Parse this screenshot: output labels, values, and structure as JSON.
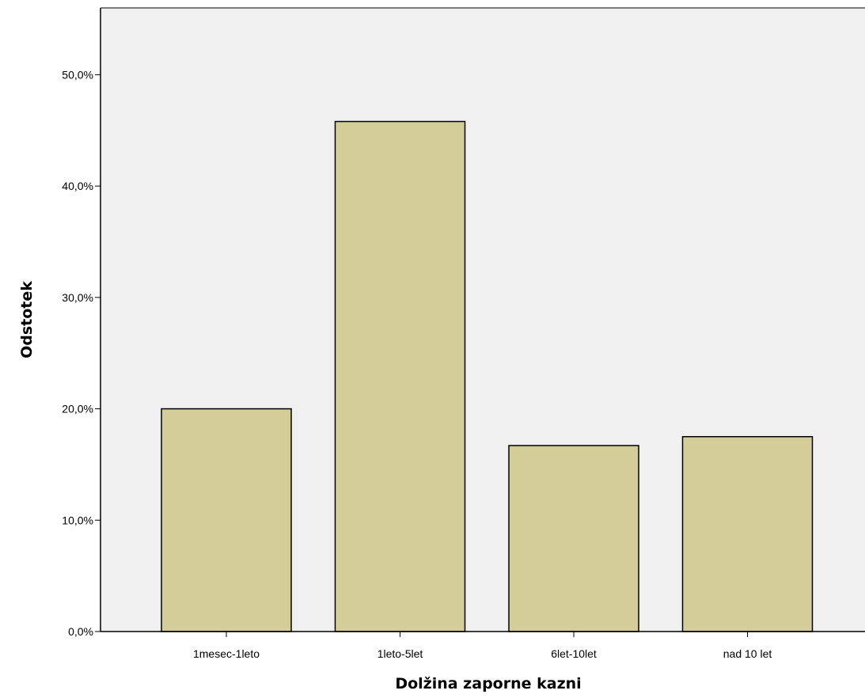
{
  "chart_data": {
    "type": "bar",
    "categories": [
      "1mesec-1leto",
      "1leto-5let",
      "6let-10let",
      "nad 10 let"
    ],
    "values": [
      20.0,
      45.8,
      16.7,
      17.5
    ],
    "xlabel": "Dolžina zaporne kazni",
    "ylabel": "Odstotek",
    "ylim": [
      0,
      56
    ],
    "yticks": [
      0,
      10,
      20,
      30,
      40,
      50
    ],
    "ytick_labels": [
      "0,0%",
      "10,0%",
      "20,0%",
      "30,0%",
      "40,0%",
      "50,0%"
    ],
    "grid": false,
    "legend": "none",
    "colors": {
      "plot_background": "#f0f0f0",
      "bar_fill": "#d3ce97",
      "bar_stroke": "#000000",
      "axis": "#000000"
    }
  }
}
